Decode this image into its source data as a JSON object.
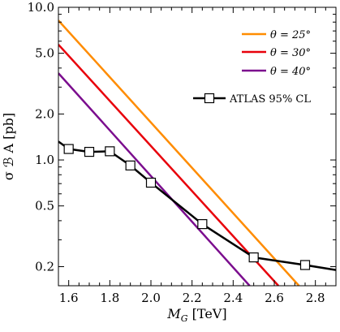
{
  "chart_data": {
    "type": "line",
    "title": "",
    "xlabel": {
      "main": "M",
      "sub": "G",
      "unit": " [TeV]"
    },
    "ylabel": "σ ℬ A  [pb]",
    "xlim": [
      1.55,
      2.9
    ],
    "ylim": [
      0.15,
      10.0
    ],
    "yscale": "log",
    "grid": false,
    "legend_position": "top-right",
    "x_ticks": [
      1.6,
      1.8,
      2.0,
      2.2,
      2.4,
      2.6,
      2.8
    ],
    "x_tick_labels": [
      "1.6",
      "1.8",
      "2.0",
      "2.2",
      "2.4",
      "2.6",
      "2.8"
    ],
    "y_ticks": [
      0.2,
      0.5,
      1.0,
      2.0,
      5.0,
      10.0
    ],
    "y_tick_labels": [
      "0.2",
      "0.5",
      "1.0",
      "2.0",
      "5.0",
      "10.0"
    ],
    "series": [
      {
        "name": "θ = 25°",
        "color": "#FF8C00",
        "kind": "line",
        "x": [
          1.55,
          2.72
        ],
        "y": [
          8.2,
          0.15
        ]
      },
      {
        "name": "θ = 30°",
        "color": "#E8000B",
        "kind": "line",
        "x": [
          1.55,
          2.62
        ],
        "y": [
          5.7,
          0.15
        ]
      },
      {
        "name": "θ = 40°",
        "color": "#7B0D8E",
        "kind": "line",
        "x": [
          1.55,
          2.48
        ],
        "y": [
          3.7,
          0.15
        ]
      },
      {
        "name": "ATLAS 95% CL",
        "color": "#000000",
        "kind": "line-markers",
        "x": [
          1.55,
          1.6,
          1.7,
          1.8,
          1.9,
          2.0,
          2.25,
          2.5,
          2.75,
          2.9
        ],
        "y": [
          1.32,
          1.18,
          1.13,
          1.14,
          0.92,
          0.71,
          0.38,
          0.23,
          0.205,
          0.19
        ],
        "markers": [
          false,
          true,
          true,
          true,
          true,
          true,
          true,
          true,
          true,
          false
        ]
      }
    ]
  }
}
